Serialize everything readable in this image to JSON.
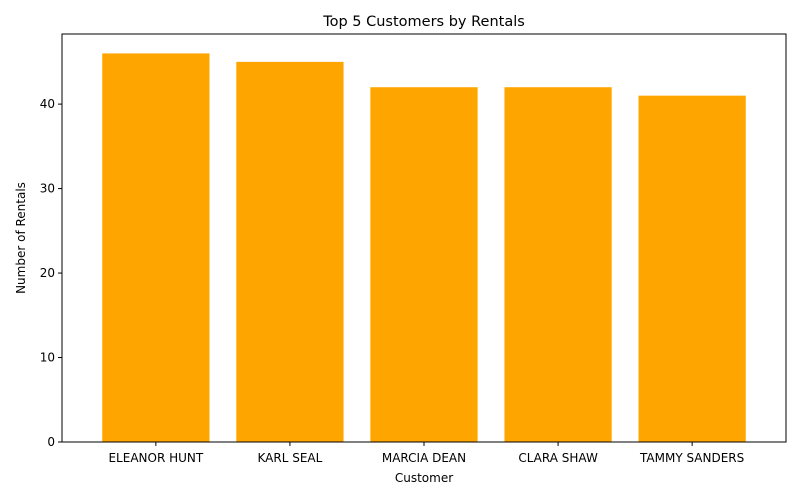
{
  "chart_data": {
    "type": "bar",
    "title": "Top 5 Customers by Rentals",
    "xlabel": "Customer",
    "ylabel": "Number of Rentals",
    "categories": [
      "ELEANOR HUNT",
      "KARL SEAL",
      "MARCIA DEAN",
      "CLARA SHAW",
      "TAMMY SANDERS"
    ],
    "values": [
      46,
      45,
      42,
      42,
      41
    ],
    "ylim": [
      0,
      48.3
    ],
    "yticks": [
      0,
      10,
      20,
      30,
      40
    ],
    "grid": false,
    "legend": "none",
    "bar_color": "#ffa500"
  }
}
